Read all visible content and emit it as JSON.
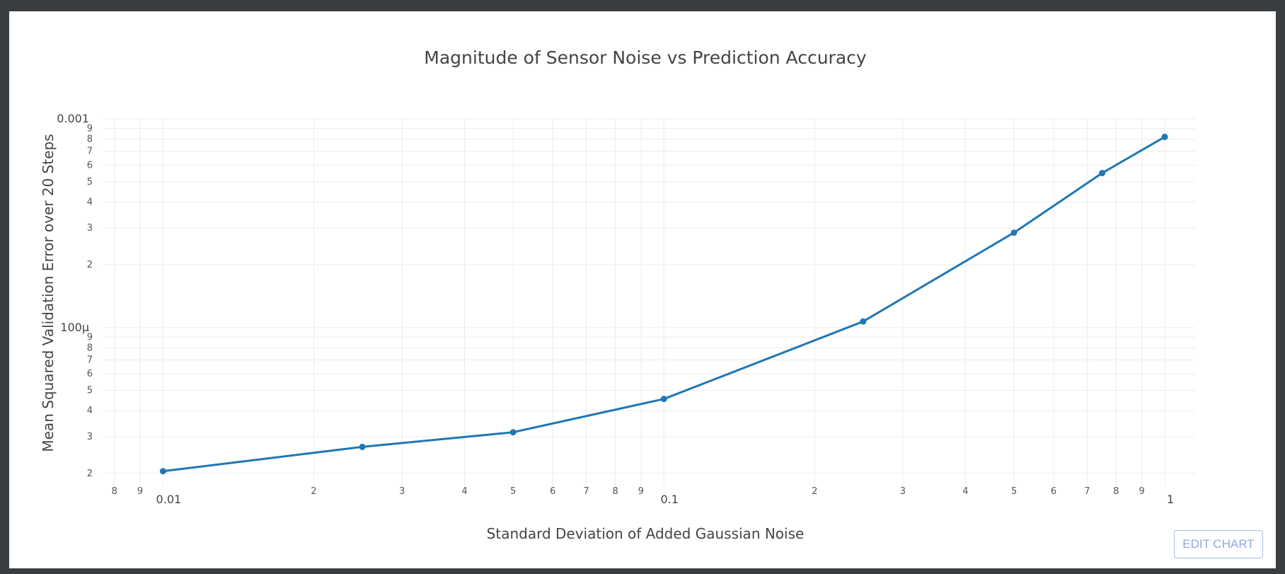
{
  "edit_button": {
    "label": "EDIT CHART"
  },
  "chart_data": {
    "type": "line",
    "title": "Magnitude of Sensor Noise vs Prediction Accuracy",
    "xlabel": "Standard Deviation of Added Gaussian Noise",
    "ylabel": "Mean Squared Validation Error over 20 Steps",
    "xscale": "log",
    "yscale": "log",
    "xlim": [
      0.0076,
      1.15
    ],
    "ylim": [
      1.75e-05,
      0.001
    ],
    "grid": true,
    "legend": "none",
    "color": "#1f77b4",
    "x_major_ticks": [
      {
        "value": 0.01,
        "label": "0.01"
      },
      {
        "value": 0.1,
        "label": "0.1"
      },
      {
        "value": 1,
        "label": "1"
      }
    ],
    "x_minor_ticks": [
      {
        "value": 0.008,
        "label": "8"
      },
      {
        "value": 0.009,
        "label": "9"
      },
      {
        "value": 0.02,
        "label": "2"
      },
      {
        "value": 0.03,
        "label": "3"
      },
      {
        "value": 0.04,
        "label": "4"
      },
      {
        "value": 0.05,
        "label": "5"
      },
      {
        "value": 0.06,
        "label": "6"
      },
      {
        "value": 0.07,
        "label": "7"
      },
      {
        "value": 0.08,
        "label": "8"
      },
      {
        "value": 0.09,
        "label": "9"
      },
      {
        "value": 0.2,
        "label": "2"
      },
      {
        "value": 0.3,
        "label": "3"
      },
      {
        "value": 0.4,
        "label": "4"
      },
      {
        "value": 0.5,
        "label": "5"
      },
      {
        "value": 0.6,
        "label": "6"
      },
      {
        "value": 0.7,
        "label": "7"
      },
      {
        "value": 0.8,
        "label": "8"
      },
      {
        "value": 0.9,
        "label": "9"
      }
    ],
    "y_major_ticks": [
      {
        "value": 0.0001,
        "label": "100μ"
      },
      {
        "value": 0.001,
        "label": "0.001"
      }
    ],
    "y_minor_ticks": [
      {
        "value": 2e-05,
        "label": "2"
      },
      {
        "value": 3e-05,
        "label": "3"
      },
      {
        "value": 4e-05,
        "label": "4"
      },
      {
        "value": 5e-05,
        "label": "5"
      },
      {
        "value": 6e-05,
        "label": "6"
      },
      {
        "value": 7e-05,
        "label": "7"
      },
      {
        "value": 8e-05,
        "label": "8"
      },
      {
        "value": 9e-05,
        "label": "9"
      },
      {
        "value": 0.0002,
        "label": "2"
      },
      {
        "value": 0.0003,
        "label": "3"
      },
      {
        "value": 0.0004,
        "label": "4"
      },
      {
        "value": 0.0005,
        "label": "5"
      },
      {
        "value": 0.0006,
        "label": "6"
      },
      {
        "value": 0.0007,
        "label": "7"
      },
      {
        "value": 0.0008,
        "label": "8"
      },
      {
        "value": 0.0009,
        "label": "9"
      }
    ],
    "series": [
      {
        "x": [
          0.01,
          0.025,
          0.05,
          0.1,
          0.25,
          0.5,
          0.75,
          1
        ],
        "y": [
          2.05e-05,
          2.68e-05,
          3.15e-05,
          4.55e-05,
          0.000107,
          0.000285,
          0.00055,
          0.00082
        ]
      }
    ]
  }
}
